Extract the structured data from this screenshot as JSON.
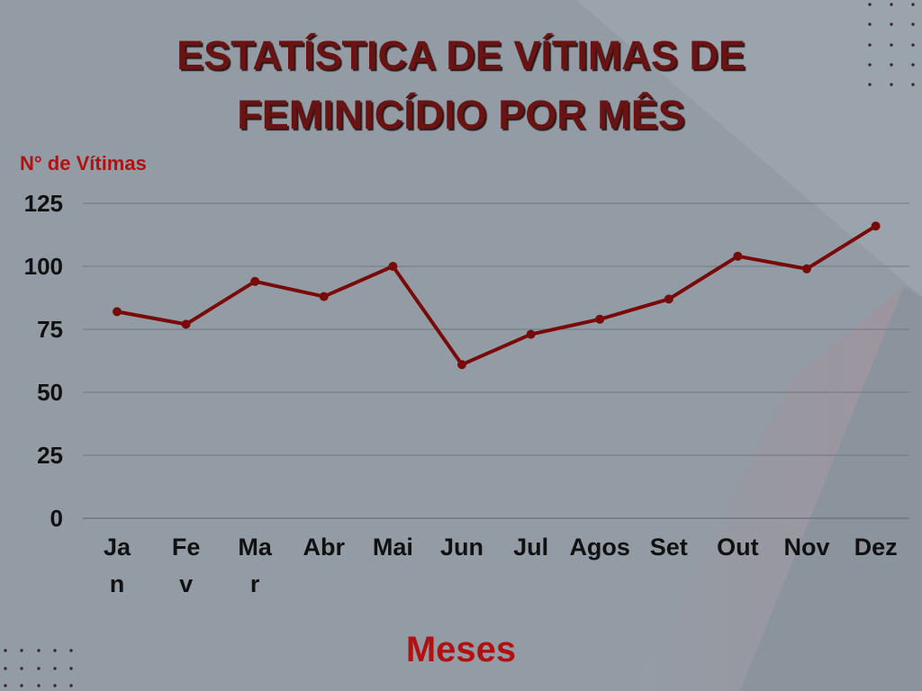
{
  "colors": {
    "background": "#939ca5",
    "background_light": "#a3abb2",
    "background_dark": "#8b949d",
    "background_tint": "#a0929c",
    "title": "#6b1313",
    "title_shadow": "#2a1818",
    "accent": "#b01212",
    "line": "#780a0a",
    "grid": "#6f7780",
    "tick_text": "#111111",
    "dots": "#3a2a2c"
  },
  "chart_data": {
    "type": "line",
    "title": "ESTATÍSTICA DE VÍTIMAS DE FEMINICÍDIO POR MÊS",
    "ylabel": "N° de Vítimas",
    "xlabel": "Meses",
    "categories": [
      "Jan",
      "Fev",
      "Mar",
      "Abr",
      "Mai",
      "Jun",
      "Jul",
      "Agos",
      "Set",
      "Out",
      "Nov",
      "Dez"
    ],
    "series": [
      {
        "values": [
          82,
          77,
          94,
          88,
          100,
          61,
          73,
          79,
          87,
          104,
          99,
          116
        ]
      }
    ],
    "ylim": [
      0,
      125
    ],
    "yticks": [
      0,
      25,
      50,
      75,
      100,
      125
    ],
    "grid": true,
    "markers": true,
    "legend": "none"
  }
}
